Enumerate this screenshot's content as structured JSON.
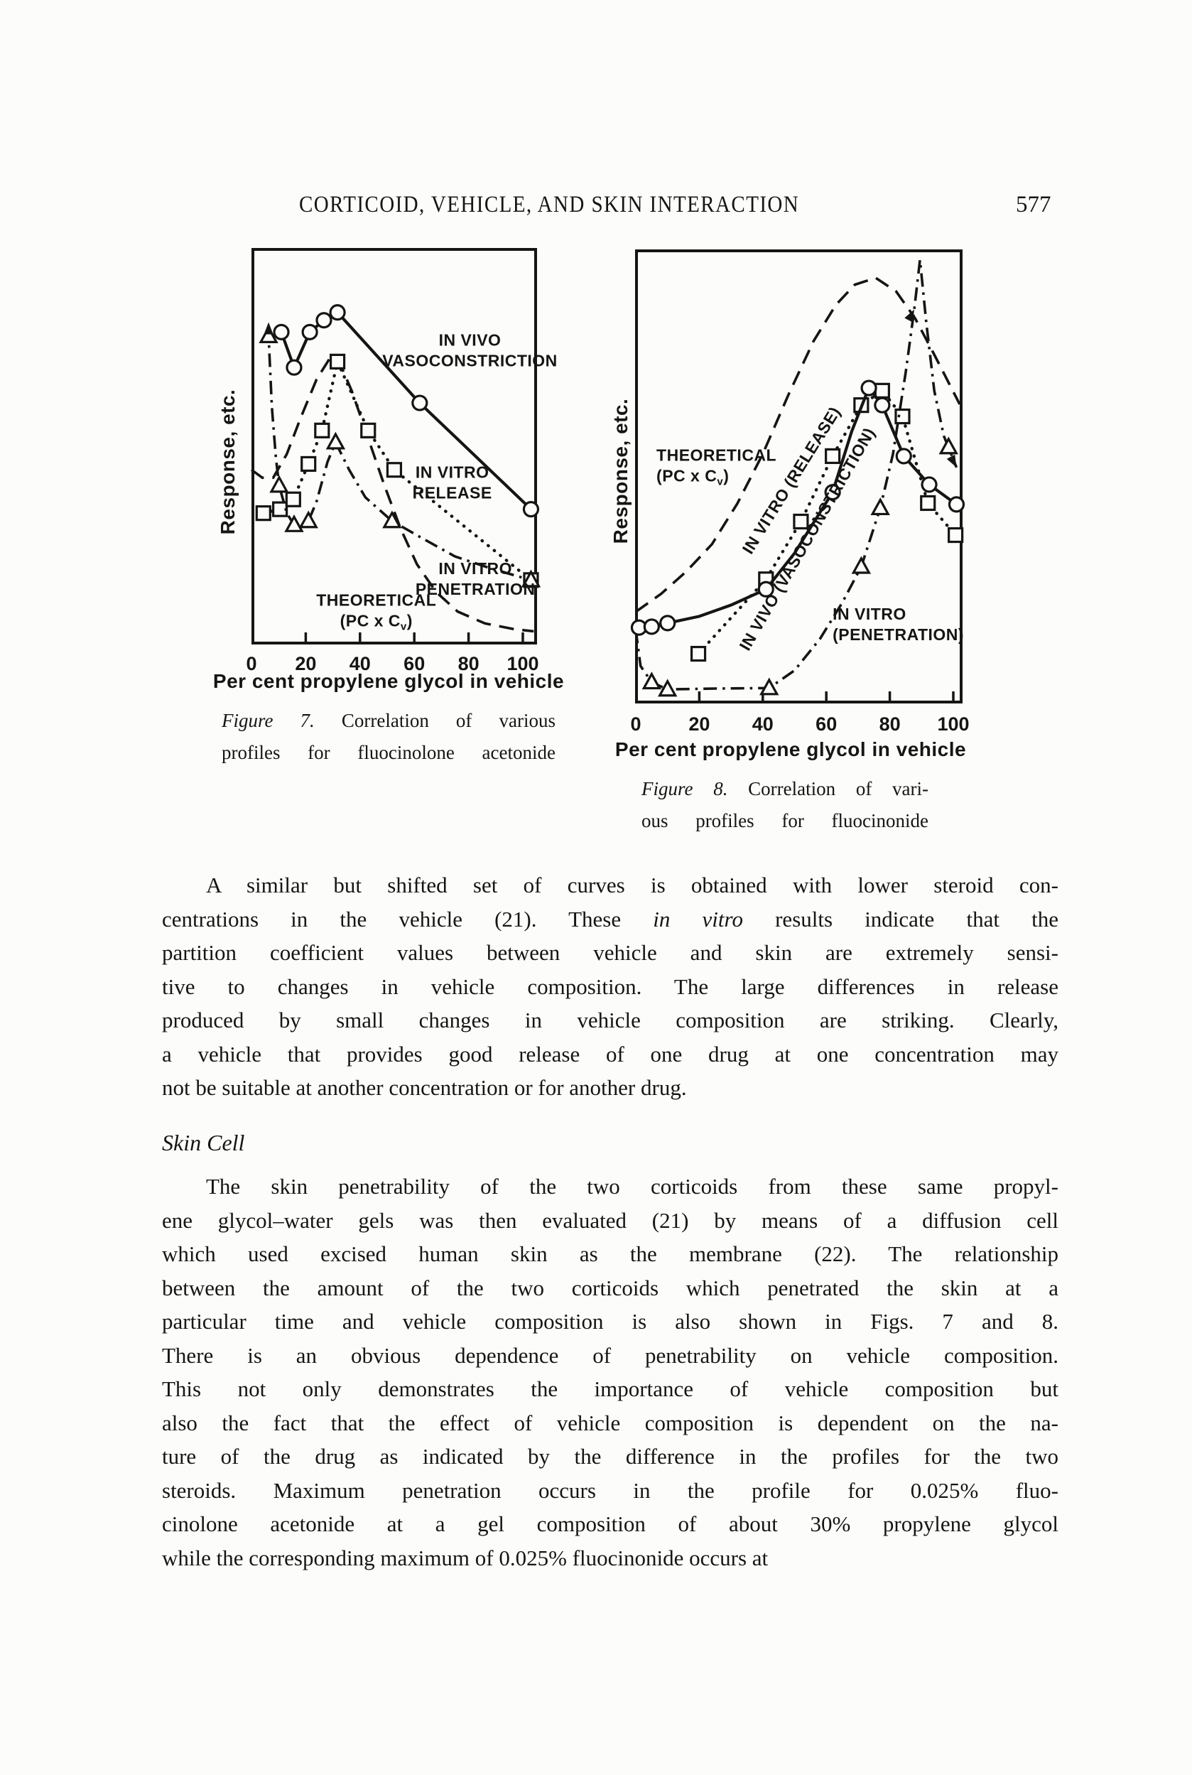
{
  "page": {
    "background": "#fcfcfa",
    "ink": "#161514"
  },
  "header": {
    "title": "CORTICOID, VEHICLE, AND SKIN INTERACTION",
    "page_number": "577"
  },
  "figures": [
    {
      "label": "Figure 7.",
      "caption_l1": "Correlation of various",
      "caption_l2": "profiles for fluocinolone acetonide"
    },
    {
      "label": "Figure 8.",
      "caption_l1": "Correlation of vari-",
      "caption_l2": "ous profiles for fluocinonide"
    }
  ],
  "chart_data": [
    {
      "figure": "Figure 7",
      "subject": "fluocinolone acetonide",
      "type": "line",
      "xlabel": "Per cent propylene glycol in vehicle",
      "ylabel": "Response, etc.",
      "x_ticks": [
        0,
        20,
        40,
        60,
        80,
        100
      ],
      "x_tick_labels": [
        "0",
        "20",
        "40",
        "60",
        "80",
        "100"
      ],
      "xlim": [
        0,
        105
      ],
      "ylim": [
        0,
        100
      ],
      "y_units": "arbitrary response (axis unlabeled)",
      "grid": false,
      "series": [
        {
          "name": "THEORETICAL (PC x Cv)",
          "style": "dashed",
          "marker": null,
          "points": [
            [
              0,
              44
            ],
            [
              4,
              42
            ],
            [
              8,
              42
            ],
            [
              13,
              48
            ],
            [
              18,
              57
            ],
            [
              24,
              67
            ],
            [
              29,
              72.5
            ],
            [
              32,
              72
            ],
            [
              37,
              64
            ],
            [
              43,
              52
            ],
            [
              49,
              40
            ],
            [
              55,
              29
            ],
            [
              61,
              20
            ],
            [
              68,
              13
            ],
            [
              76,
              8
            ],
            [
              86,
              5
            ],
            [
              97,
              3.5
            ],
            [
              104,
              3
            ]
          ]
        },
        {
          "name": "IN VITRO RELEASE",
          "style": "dotted",
          "marker": "square",
          "points": [
            [
              4.4,
              33
            ],
            [
              10.5,
              34
            ],
            [
              15.4,
              36.5
            ],
            [
              21,
              45.5
            ],
            [
              26,
              54
            ],
            [
              31.7,
              71.5
            ],
            [
              43,
              54
            ],
            [
              52.6,
              44
            ],
            [
              103,
              16
            ]
          ],
          "marker_points": [
            [
              4.4,
              33
            ],
            [
              10.5,
              34
            ],
            [
              15.4,
              36.5
            ],
            [
              21,
              45.5
            ],
            [
              26,
              54
            ],
            [
              31.7,
              71.5
            ],
            [
              43,
              54
            ],
            [
              52.6,
              44
            ],
            [
              103,
              16
            ]
          ]
        },
        {
          "name": "IN VITRO PENETRATION",
          "style": "dashdot",
          "marker": "triangle",
          "points": [
            [
              6.3,
              80.5
            ],
            [
              6.3,
              78
            ],
            [
              7.5,
              60
            ],
            [
              9,
              47
            ],
            [
              10.2,
              40
            ],
            [
              13,
              33
            ],
            [
              15.7,
              30
            ],
            [
              18,
              30
            ],
            [
              21,
              31
            ],
            [
              24,
              36
            ],
            [
              28,
              46
            ],
            [
              31,
              51
            ],
            [
              36,
              44
            ],
            [
              42,
              37
            ],
            [
              51.8,
              31
            ],
            [
              62,
              27
            ],
            [
              75,
              22
            ],
            [
              88,
              19
            ],
            [
              103,
              16
            ]
          ],
          "marker_points": [
            [
              6.3,
              78
            ],
            [
              10.2,
              40
            ],
            [
              15.7,
              30
            ],
            [
              21,
              31
            ],
            [
              31,
              51
            ],
            [
              51.8,
              31
            ],
            [
              103,
              16
            ]
          ],
          "arrows": [
            {
              "x": 6.3,
              "y": 81.5,
              "angle": -90
            }
          ]
        },
        {
          "name": "IN VIVO VASOCONSTRICTION",
          "style": "solid",
          "marker": "circle",
          "points": [
            [
              11,
              79
            ],
            [
              15.7,
              70
            ],
            [
              21.5,
              79
            ],
            [
              26.7,
              82
            ],
            [
              31.7,
              84
            ],
            [
              62,
              61
            ],
            [
              103,
              34
            ]
          ],
          "marker_points": [
            [
              11,
              79
            ],
            [
              15.7,
              70
            ],
            [
              21.5,
              79
            ],
            [
              26.7,
              82
            ],
            [
              31.7,
              84
            ],
            [
              62,
              61
            ],
            [
              103,
              34
            ]
          ]
        }
      ],
      "annotations": [
        {
          "lines": [
            "IN VIVO",
            "VASOCONSTRICTION"
          ],
          "x": 80.5,
          "y": 75.5,
          "anchor": "middle"
        },
        {
          "lines": [
            "IN VITRO",
            "RELEASE"
          ],
          "x": 74,
          "y": 42,
          "anchor": "middle"
        },
        {
          "lines": [
            "IN VITRO",
            "PENETRATION"
          ],
          "x": 82.5,
          "y": 17.5,
          "anchor": "middle"
        },
        {
          "lines": [
            "THEORETICAL",
            "(PC x C_v)"
          ],
          "x": 46,
          "y": 9.5,
          "anchor": "middle"
        }
      ]
    },
    {
      "figure": "Figure 8",
      "subject": "fluocinonide",
      "type": "line",
      "xlabel": "Per cent propylene glycol in vehicle",
      "ylabel": "Response, etc.",
      "x_ticks": [
        0,
        20,
        40,
        60,
        80,
        100
      ],
      "x_tick_labels": [
        "0",
        "20",
        "40",
        "60",
        "80",
        "100"
      ],
      "xlim": [
        0,
        102.5
      ],
      "ylim": [
        0,
        100
      ],
      "y_units": "arbitrary response (axis unlabeled)",
      "grid": false,
      "series": [
        {
          "name": "THEORETICAL (PC x Cv)",
          "style": "dashed",
          "marker": null,
          "points": [
            [
              0,
              20
            ],
            [
              8,
              24
            ],
            [
              16,
              29
            ],
            [
              24,
              35
            ],
            [
              32,
              44
            ],
            [
              40,
              55
            ],
            [
              48,
              68
            ],
            [
              56,
              80
            ],
            [
              63,
              88
            ],
            [
              69,
              92.5
            ],
            [
              75.6,
              94
            ],
            [
              82,
              91
            ],
            [
              88,
              85
            ],
            [
              94,
              77
            ],
            [
              102.5,
              66
            ]
          ]
        },
        {
          "name": "IN VITRO (RELEASE)",
          "style": "dotted",
          "marker": "square",
          "points": [
            [
              19.7,
              10.7
            ],
            [
              41,
              27.2
            ],
            [
              52,
              40
            ],
            [
              62,
              54.5
            ],
            [
              71,
              65.8
            ],
            [
              77.6,
              69
            ],
            [
              84,
              63.3
            ],
            [
              92,
              44.1
            ],
            [
              100.7,
              37
            ]
          ],
          "marker_points": [
            [
              19.7,
              10.7
            ],
            [
              41,
              27.2
            ],
            [
              52,
              40
            ],
            [
              62,
              54.5
            ],
            [
              71,
              65.8
            ],
            [
              77.6,
              69
            ],
            [
              84,
              63.3
            ],
            [
              92,
              44.1
            ],
            [
              100.7,
              37
            ]
          ]
        },
        {
          "name": "IN VITRO (PENETRATION)",
          "style": "dashdot",
          "marker": "triangle",
          "points": [
            [
              0,
              16
            ],
            [
              1.5,
              8
            ],
            [
              5,
              4.4
            ],
            [
              10,
              2.8
            ],
            [
              25,
              3
            ],
            [
              42,
              3.1
            ],
            [
              50,
              7
            ],
            [
              58,
              14
            ],
            [
              65,
              22
            ],
            [
              71,
              30
            ],
            [
              77,
              43
            ],
            [
              81,
              55
            ],
            [
              85,
              73
            ],
            [
              87.7,
              87
            ],
            [
              89.5,
              98
            ],
            [
              91.5,
              84
            ],
            [
              94,
              69
            ],
            [
              97,
              59
            ],
            [
              101,
              52
            ]
          ],
          "marker_points": [
            [
              5,
              4.4
            ],
            [
              10,
              2.8
            ],
            [
              42,
              3.1
            ],
            [
              71,
              30
            ],
            [
              77,
              43
            ],
            [
              98.5,
              56.5
            ]
          ],
          "arrows": [
            {
              "x": 87.7,
              "y": 87,
              "angle": -62
            },
            {
              "x": 101,
              "y": 52,
              "angle": 62
            }
          ]
        },
        {
          "name": "IN VIVO (VASOCONSTRICTION)",
          "style": "solid",
          "marker": "circle",
          "points": [
            [
              1,
              16.5
            ],
            [
              5,
              16.7
            ],
            [
              10,
              17.5
            ],
            [
              20,
              19
            ],
            [
              30,
              21.5
            ],
            [
              41,
              25
            ],
            [
              50,
              33
            ],
            [
              62,
              46.5
            ],
            [
              68,
              60
            ],
            [
              73.4,
              69.6
            ],
            [
              77.6,
              65.8
            ],
            [
              84.4,
              54.5
            ],
            [
              92.4,
              48.2
            ],
            [
              101,
              43.8
            ]
          ],
          "marker_points": [
            [
              1,
              16.5
            ],
            [
              5,
              16.7
            ],
            [
              10,
              17.5
            ],
            [
              41,
              25
            ],
            [
              62,
              46.5
            ],
            [
              73.4,
              69.6
            ],
            [
              77.6,
              65.8
            ],
            [
              84.4,
              54.5
            ],
            [
              92.4,
              48.2
            ],
            [
              101,
              43.8
            ]
          ]
        }
      ],
      "annotations": [
        {
          "lines": [
            "THEORETICAL",
            "(PC x C_v)"
          ],
          "x": 6.5,
          "y": 53.5,
          "anchor": "start"
        },
        {
          "lines": [
            "IN VITRO (RELEASE)"
          ],
          "x": 50.5,
          "y": 48.5,
          "anchor": "middle",
          "rotate": -58
        },
        {
          "lines": [
            "IN VIVO (VASOCONSTRICTION)"
          ],
          "x": 55.5,
          "y": 35.5,
          "anchor": "middle",
          "rotate": -60
        },
        {
          "lines": [
            "IN VITRO",
            "(PENETRATION)"
          ],
          "x": 62,
          "y": 18.3,
          "anchor": "start"
        }
      ]
    }
  ],
  "body": {
    "p1_l1": "A similar but shifted set of curves is obtained with lower steroid con-",
    "p1_l2a": "centrations in the vehicle (21).  These ",
    "p1_l2b": "in vitro",
    "p1_l2c": " results indicate that the",
    "p1_l3": "partition coefficient values between vehicle and skin are extremely sensi-",
    "p1_l4": "tive to changes in vehicle composition.  The large differences in release",
    "p1_l5": "produced by small changes in vehicle composition are striking.  Clearly,",
    "p1_l6": "a vehicle that provides good release of one drug at one concentration may",
    "p1_l7": "not be suitable at another concentration or for another drug.",
    "heading": "Skin Cell",
    "p2_l1": "The skin  penetrability of the two corticoids from these same propyl-",
    "p2_l2": "ene glycol–water gels was then evaluated  (21) by means of a diffusion cell",
    "p2_l3": "which used excised human skin as the membrane (22).  The relationship",
    "p2_l4": "between the amount of the two corticoids which penetrated the skin at a",
    "p2_l5": "particular time and vehicle composition is also shown in Figs. 7 and 8.",
    "p2_l6": "There is an obvious dependence of penetrability on vehicle composition.",
    "p2_l7": "This not only demonstrates the importance of vehicle composition but",
    "p2_l8": "also the fact that the effect of vehicle composition is dependent on the na-",
    "p2_l9": "ture of the drug as indicated by the difference in the profiles for the two",
    "p2_l10": "steroids.  Maximum penetration occurs in the profile for 0.025% fluo-",
    "p2_l11": "cinolone acetonide at a gel composition of about 30% propylene glycol",
    "p2_l12": "while the corresponding maximum of 0.025% fluocinonide occurs at"
  }
}
